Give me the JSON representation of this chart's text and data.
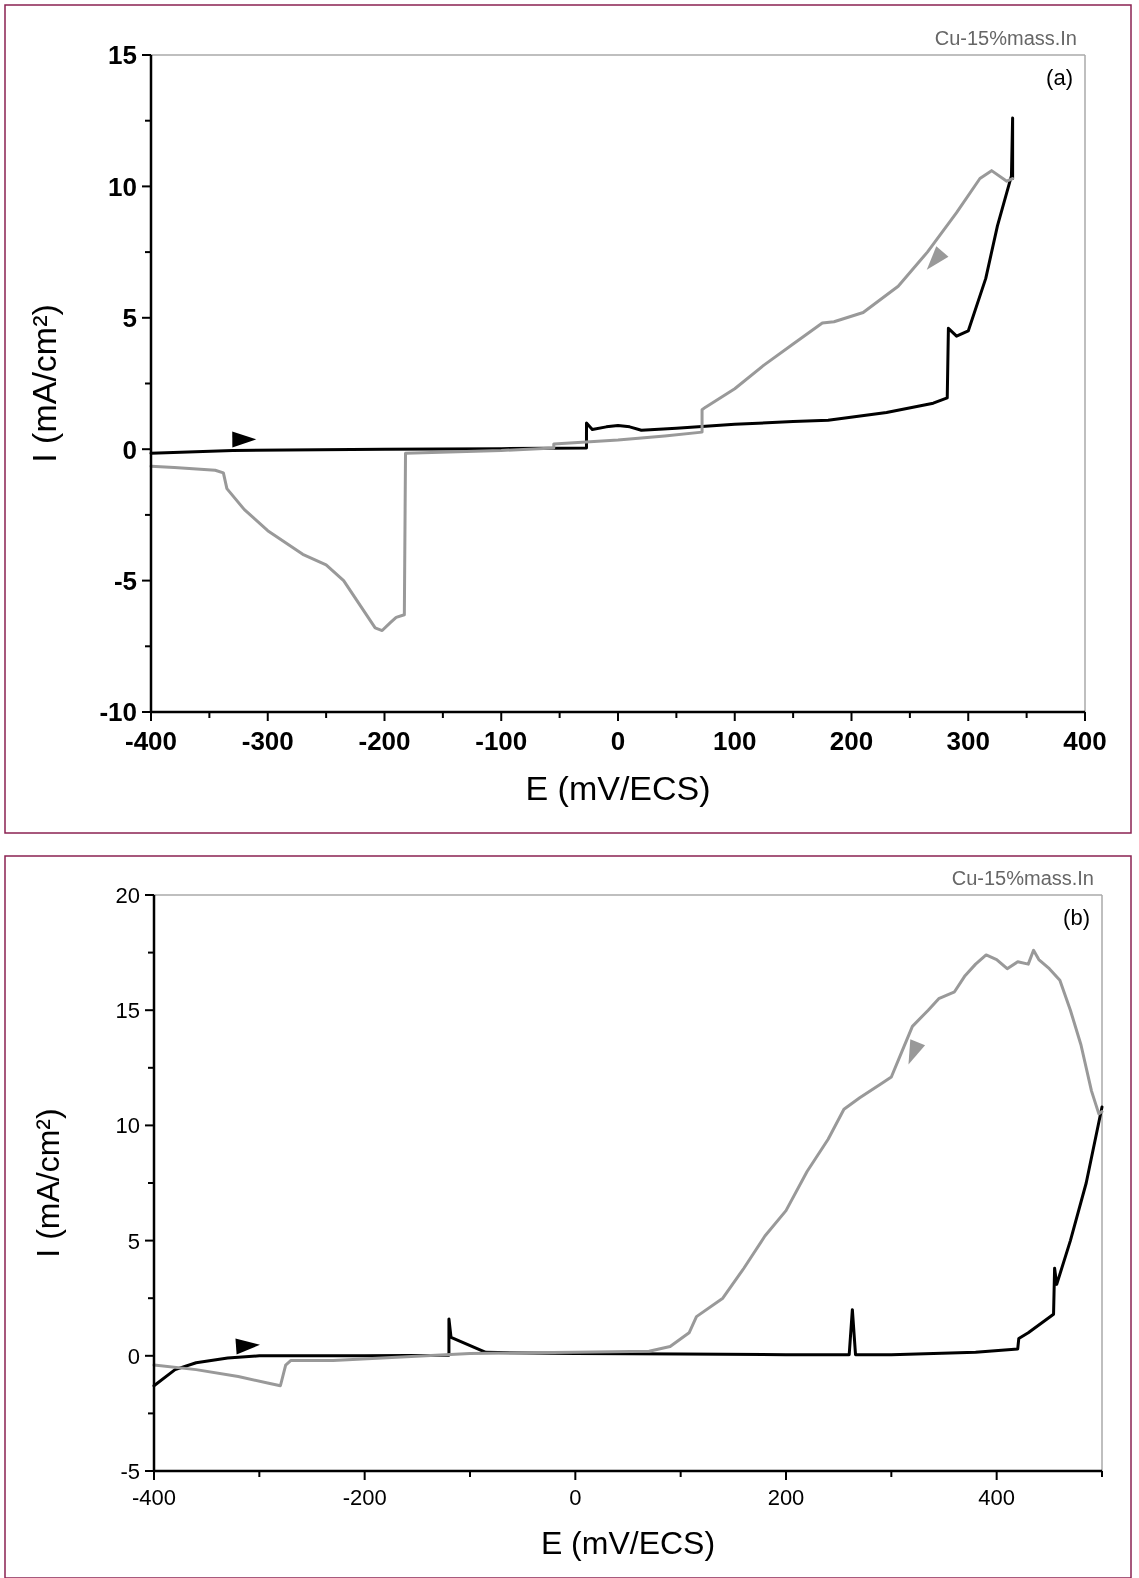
{
  "chart_data": [
    {
      "type": "line",
      "xlabel": "E (mV/ECS)",
      "ylabel": "I (mA/cm²)",
      "annotations": [
        "Cu-15%mass.In",
        "(a)"
      ],
      "xlim": [
        -400,
        400
      ],
      "ylim": [
        -10,
        15
      ],
      "xticks": [
        -400,
        {
          "value": -350,
          "label": null
        },
        -300,
        {
          "value": -250,
          "label": null
        },
        -200,
        {
          "value": -150,
          "label": null
        },
        -100,
        {
          "value": -50,
          "label": null
        },
        0,
        {
          "value": 50,
          "label": null
        },
        100,
        {
          "value": 150,
          "label": null
        },
        200,
        {
          "value": 250,
          "label": null
        },
        300,
        {
          "value": 350,
          "label": null
        },
        400
      ],
      "yticks": [
        -10,
        {
          "value": -7.5,
          "label": null
        },
        -5,
        {
          "value": -2.5,
          "label": null
        },
        0,
        {
          "value": 2.5,
          "label": null
        },
        5,
        {
          "value": 7.5,
          "label": null
        },
        10,
        {
          "value": 12.5,
          "label": null
        },
        15
      ],
      "series": [
        {
          "color": "#000000",
          "x": [
            -400,
            -330,
            -200,
            -100,
            -27,
            -27,
            -22,
            -10,
            0,
            10,
            20,
            50,
            100,
            150,
            180,
            230,
            270,
            282,
            283,
            290,
            300,
            315,
            325,
            337,
            338,
            338
          ],
          "values": [
            -0.15,
            -0.05,
            0,
            0.02,
            0.05,
            1.0,
            0.75,
            0.85,
            0.9,
            0.85,
            0.72,
            0.8,
            0.95,
            1.05,
            1.1,
            1.4,
            1.75,
            1.95,
            4.6,
            4.3,
            4.5,
            6.5,
            8.5,
            10.4,
            12.6,
            10.3
          ]
        },
        {
          "color": "#999999",
          "x": [
            338,
            333,
            320,
            310,
            290,
            265,
            240,
            210,
            185,
            175,
            150,
            125,
            100,
            75,
            72,
            72,
            40,
            0,
            -55,
            -55,
            -100,
            -182,
            -183,
            -190,
            -195,
            -202,
            -208,
            -220,
            -235,
            -250,
            -270,
            -300,
            -320,
            -335,
            -338,
            -345,
            -380,
            -400
          ],
          "values": [
            10.3,
            10.2,
            10.6,
            10.3,
            9.0,
            7.5,
            6.2,
            5.2,
            4.85,
            4.8,
            4.0,
            3.2,
            2.3,
            1.6,
            1.5,
            0.65,
            0.5,
            0.35,
            0.2,
            0.05,
            -0.05,
            -0.15,
            -6.3,
            -6.4,
            -6.6,
            -6.9,
            -6.8,
            -6.0,
            -5.0,
            -4.4,
            -4.0,
            -3.1,
            -2.3,
            -1.5,
            -0.9,
            -0.8,
            -0.7,
            -0.65
          ]
        }
      ]
    },
    {
      "type": "line",
      "xlabel": "E (mV/ECS)",
      "ylabel": "I (mA/cm²)",
      "annotations": [
        "Cu-15%mass.In",
        "(b)"
      ],
      "xlim": [
        -400,
        500
      ],
      "ylim": [
        -5,
        20
      ],
      "xticks": [
        -400,
        {
          "value": -300,
          "label": null
        },
        -200,
        {
          "value": -100,
          "label": null
        },
        0,
        {
          "value": 100,
          "label": null
        },
        200,
        {
          "value": 300,
          "label": null
        },
        400,
        {
          "value": 500,
          "label": null
        }
      ],
      "yticks": [
        -5,
        {
          "value": -2.5,
          "label": null
        },
        0,
        {
          "value": 2.5,
          "label": null
        },
        5,
        {
          "value": 7.5,
          "label": null
        },
        10,
        {
          "value": 12.5,
          "label": null
        },
        15,
        {
          "value": 17.5,
          "label": null
        },
        20
      ],
      "series": [
        {
          "color": "#000000",
          "x": [
            -400,
            -380,
            -360,
            -330,
            -300,
            -200,
            -120,
            -120,
            -118,
            -85,
            0,
            100,
            200,
            260,
            263,
            266,
            300,
            380,
            420,
            421,
            430,
            454,
            455,
            457,
            470,
            485,
            500
          ],
          "values": [
            -1.3,
            -0.6,
            -0.3,
            -0.1,
            0,
            0,
            0.02,
            1.6,
            0.8,
            0.15,
            0.1,
            0.08,
            0.05,
            0.05,
            2.0,
            0.05,
            0.05,
            0.15,
            0.3,
            0.75,
            1.0,
            1.8,
            3.8,
            3.1,
            5.0,
            7.5,
            10.8
          ]
        },
        {
          "color": "#999999",
          "x": [
            500,
            497,
            490,
            480,
            470,
            460,
            450,
            440,
            435,
            430,
            420,
            410,
            400,
            390,
            380,
            370,
            360,
            345,
            335,
            320,
            310,
            300,
            290,
            270,
            255,
            240,
            220,
            200,
            180,
            160,
            140,
            115,
            108,
            90,
            70,
            0,
            -100,
            -230,
            -270,
            -275,
            -280,
            -290,
            -320,
            -360,
            -400
          ],
          "values": [
            10.6,
            10.5,
            11.5,
            13.5,
            15.0,
            16.3,
            16.8,
            17.2,
            17.6,
            17.0,
            17.1,
            16.8,
            17.2,
            17.4,
            17.0,
            16.5,
            15.8,
            15.5,
            15.0,
            14.3,
            13.2,
            12.1,
            11.8,
            11.2,
            10.7,
            9.4,
            8.0,
            6.3,
            5.2,
            3.8,
            2.5,
            1.7,
            1.0,
            0.4,
            0.2,
            0.15,
            0.1,
            -0.2,
            -0.2,
            -0.4,
            -1.3,
            -1.2,
            -0.9,
            -0.6,
            -0.4
          ]
        }
      ]
    }
  ]
}
